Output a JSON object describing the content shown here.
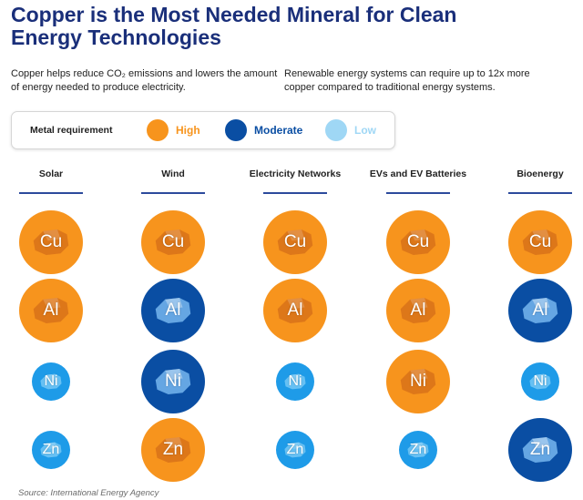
{
  "title": "Copper is the Most Needed Mineral for Clean Energy Technologies",
  "intro_left": "Copper helps reduce CO₂ emissions and lowers the amount of energy needed to produce electricity.",
  "intro_right": "Renewable energy systems can require up to 12x more copper compared to traditional energy systems.",
  "legend": {
    "title": "Metal requirement",
    "items": [
      {
        "label": "High",
        "level": "high"
      },
      {
        "label": "Moderate",
        "level": "moderate"
      },
      {
        "label": "Low",
        "level": "low"
      }
    ]
  },
  "colors": {
    "high": "#f7941d",
    "high_rock": "#d9731a",
    "moderate": "#0a4ea3",
    "moderate_rock": "#6fb0ea",
    "low": "#1e9be8",
    "low_rock": "#6fc5f5",
    "legend_low": "#9fd7f5",
    "title": "#1a2f7a"
  },
  "technologies": [
    {
      "name": "Solar"
    },
    {
      "name": "Wind"
    },
    {
      "name": "Electricity Networks"
    },
    {
      "name": "EVs and EV Batteries"
    },
    {
      "name": "Bioenergy"
    }
  ],
  "metals": [
    {
      "symbol": "Cu",
      "levels": [
        "high",
        "high",
        "high",
        "high",
        "high"
      ]
    },
    {
      "symbol": "Al",
      "levels": [
        "high",
        "moderate",
        "high",
        "high",
        "moderate"
      ]
    },
    {
      "symbol": "Ni",
      "levels": [
        "low",
        "moderate",
        "low",
        "high",
        "low"
      ]
    },
    {
      "symbol": "Zn",
      "levels": [
        "low",
        "high",
        "low",
        "low",
        "moderate"
      ]
    }
  ],
  "source": "Source: International Energy Agency"
}
